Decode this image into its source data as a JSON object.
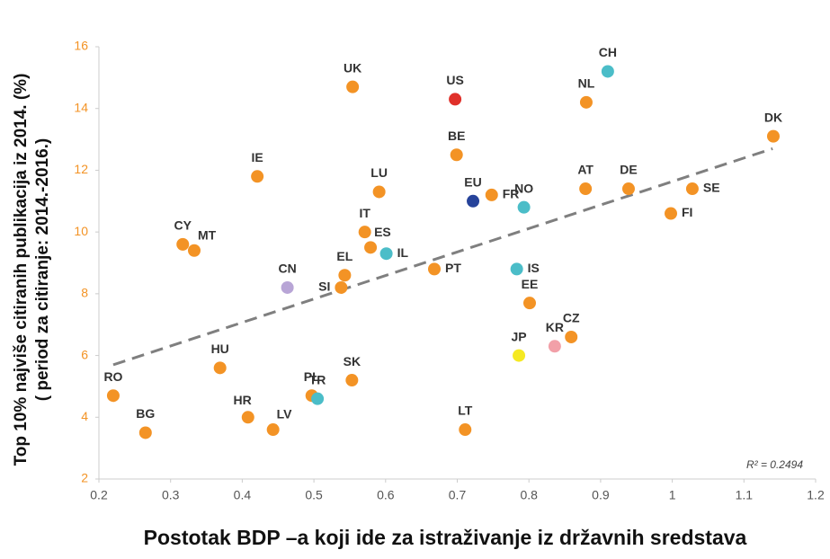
{
  "chart_data": {
    "type": "scatter",
    "xlabel": "Postotak BDP –a koji ide za istraživanje iz državnih sredstava",
    "ylabel": [
      "Top 10% najviše citiranih publikacija iz 2014. (%)",
      "( period za citiranje: 2014.-2016.)"
    ],
    "annotation": "R² = 0.2494",
    "xlim": [
      0.2,
      1.2
    ],
    "xticks": [
      0.2,
      0.3,
      0.4,
      0.5,
      0.6,
      0.7,
      0.8,
      0.9,
      1,
      1.1,
      1.2
    ],
    "ylim": [
      2,
      16
    ],
    "yticks": [
      2,
      4,
      6,
      8,
      10,
      12,
      14,
      16
    ],
    "grid": false,
    "trendline": {
      "x": [
        0.22,
        1.14
      ],
      "y": [
        5.7,
        12.7
      ],
      "color": "#7f7f7f"
    },
    "series": [
      {
        "labels": [
          "UK",
          "US",
          "CH",
          "NL",
          "DK",
          "BE",
          "IE",
          "LU",
          "FR",
          "EU",
          "NO",
          "AT",
          "DE",
          "SE",
          "FI",
          "IT",
          "CY",
          "MT",
          "ES",
          "IL",
          "PT",
          "IS",
          "EL",
          "SI",
          "CN",
          "EE",
          "CZ",
          "KR",
          "JP",
          "HU",
          "SK",
          "RO",
          "PL",
          "TR",
          "HR",
          "LV",
          "LT",
          "BG"
        ],
        "x": [
          0.554,
          0.697,
          0.91,
          0.88,
          1.141,
          0.699,
          0.421,
          0.591,
          0.748,
          0.722,
          0.793,
          0.879,
          0.939,
          1.028,
          0.998,
          0.571,
          0.317,
          0.333,
          0.579,
          0.601,
          0.668,
          0.783,
          0.543,
          0.538,
          0.463,
          0.801,
          0.859,
          0.836,
          0.786,
          0.369,
          0.553,
          0.22,
          0.497,
          0.505,
          0.408,
          0.443,
          0.711,
          0.265
        ],
        "values": [
          14.7,
          14.3,
          15.2,
          14.2,
          13.1,
          12.5,
          11.8,
          11.3,
          11.2,
          11.0,
          10.8,
          11.4,
          11.4,
          11.4,
          10.6,
          10.0,
          9.6,
          9.4,
          9.5,
          9.3,
          8.8,
          8.8,
          8.6,
          8.2,
          8.2,
          7.7,
          6.6,
          6.3,
          6.0,
          5.6,
          5.2,
          4.7,
          4.7,
          4.6,
          4.0,
          3.6,
          3.6,
          3.5
        ],
        "colors": [
          "#f39325",
          "#e0302a",
          "#4bbdc8",
          "#f39325",
          "#f39325",
          "#f39325",
          "#f39325",
          "#f39325",
          "#f39325",
          "#26439a",
          "#4bbdc8",
          "#f39325",
          "#f39325",
          "#f39325",
          "#f39325",
          "#f39325",
          "#f39325",
          "#f39325",
          "#f39325",
          "#4bbdc8",
          "#f39325",
          "#4bbdc8",
          "#f39325",
          "#f39325",
          "#b8a5d6",
          "#f39325",
          "#f39325",
          "#f2a0a8",
          "#f5e922",
          "#f39325",
          "#f39325",
          "#f39325",
          "#f39325",
          "#4bbdc8",
          "#f39325",
          "#f39325",
          "#f39325",
          "#f39325"
        ]
      }
    ]
  }
}
